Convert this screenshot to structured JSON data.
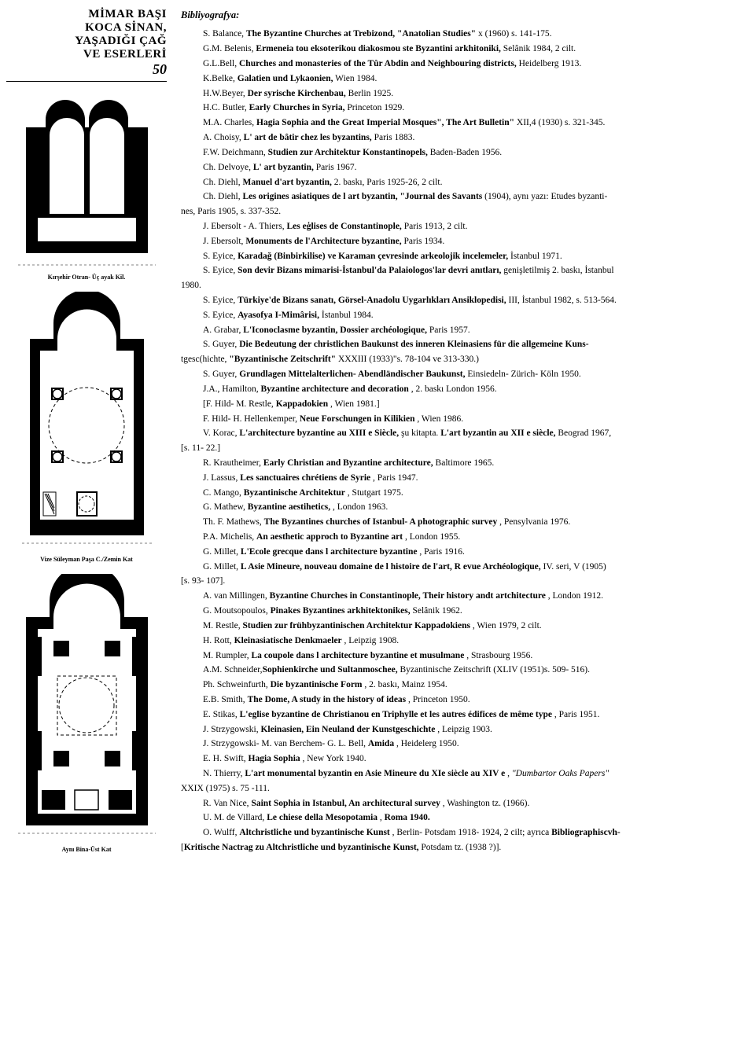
{
  "title": {
    "line1": "MİMAR BAŞI",
    "line2": "KOCA SİNAN,",
    "line3": "YAŞADIĞI ÇAĞ",
    "line4": "VE ESERLERİ",
    "page_number": "50"
  },
  "captions": {
    "fig1": "Kırşehir Otran- Üç ayak Kil.",
    "fig2": "Vize Süleyman Paşa C./Zemin Kat",
    "fig3": "Aynı Bina-Üst Kat"
  },
  "bibliography_title": "Bibliyografya:",
  "entries": [
    "S. Balance, <b>The Byzantine Churches at Trebizond, \"Anatolian Studies\"</b> x (1960) s. 141-175.",
    "G.M. Belenis, <b>Ermeneia tou eksoterikou diakosmou ste Byzantini arkhitoniki,</b> Selânik 1984, 2 cilt.",
    "G.L.Bell, <b>Churches and monasteries of the Tûr Abdin and Neighbouring districts,</b> Heidelberg 1913.",
    "K.Belke, <b>Galatien und Lykaonien,</b> Wien 1984.",
    "H.W.Beyer, <b>Der syrische Kirchenbau,</b> Berlin 1925.",
    "H.C. Butler, <b>Early Churches in Syria,</b> Princeton 1929.",
    "M.A. Charles, <b>Hagia Sophia and the Great Imperial Mosques\", The Art Bulletin\"</b> XII,4 (1930) s. 321-345.",
    "A. Choisy, <b>L' art de bâtir chez les byzantins,</b> Paris 1883.",
    "F.W. Deichmann, <b>Studien zur Architektur Konstantinopels,</b> Baden-Baden 1956.",
    "Ch. Delvoye, <b>L' art byzantin,</b> Paris 1967.",
    "Ch. Diehl, <b>Manuel d'art byzantin,</b> 2. baskı, Paris 1925-26, 2 cilt.",
    "Ch. Diehl, <b>Les origines asiatiques de l art byzantin, \"Journal des Savants</b> (1904), aynı yazı: Etudes byzanti-",
    "__nes, Paris 1905, s. 337-352.",
    "J. Ebersolt - A. Thiers, <b>Les eģlises de Constantinople,</b> Paris 1913, 2 cilt.",
    "J. Ebersolt, <b>Monuments de l'Architecture byzantine,</b> Paris 1934.",
    "S. Eyice, <b>Karadağ (Binbirkilise) ve Karaman çevresinde arkeolojik incelemeler,</b> İstanbul 1971.",
    "S. Eyice, <b>Son devir Bizans mimarisi-İstanbul'da Palaiologos'lar devri anıtları,</b> genişletilmiş 2. baskı, İstanbul",
    "__1980.",
    "S. Eyice, <b>Türkiye'de Bizans sanatı, Görsel-Anadolu Uygarlıkları Ansiklopedisi,</b> III, İstanbul 1982, s. 513-564.",
    "S. Eyice, <b>Ayasofya I-Mimârisi,</b> İstanbul 1984.",
    "A. Grabar, <b>L'Iconoclasme byzantin, Dossier archéologique,</b> Paris 1957.",
    "S. Guyer, <b>Die Bedeutung der christlichen Baukunst des inneren Kleinasiens für die allgemeine Kuns-</b>",
    "__tgesc(hichte, <b>\"Byzantinische Zeitschrift\"</b> XXXIII (1933)\"s. 78-104 ve 313-330.)",
    "S. Guyer, <b>Grundlagen Mittelalterlichen- Abendländischer Baukunst,</b> Einsiedeln- Zürich- Köln 1950.",
    "J.A., Hamilton, <b>Byzantine architecture and decoration</b> , 2. baskı London 1956.",
    "[F. Hild- M. Restle, <b>Kappadokien</b> , Wien 1981.]",
    "F. Hild- H. Hellenkemper, <b>Neue Forschungen in Kilikien</b> , Wien 1986.",
    "V. Korac, <b>L'architecture byzantine au XIII e Siècle,</b> şu kitapta. <b>L'art byzantin au XII e siècle,</b> Beograd 1967,",
    "__[s. 11- 22.]",
    "R. Krautheimer, <b>Early Christian and Byzantine architecture,</b> Baltimore 1965.",
    "J. Lassus, <b>Les sanctuaires chrétiens de Syrie</b> , Paris 1947.",
    "C. Mango, <b>Byzantinische Architektur</b> , Stutgart 1975.",
    "G. Mathew, <b>Byzantine aestihetics,</b> , London 1963.",
    "Th. F. Mathews, <b>The Byzantines churches of Istanbul- A photographic survey</b> , Pensylvania 1976.",
    "P.A. Michelis, <b>An aesthetic approch to Byzantine art</b> , London 1955.",
    "G. Millet, <b>L'Ecole grecque dans l architecture byzantine</b> , Paris 1916.",
    "G. Millet, <b>L Asie Mineure, nouveau domaine de l histoire de l'art, R evue Archéologique,</b> IV. seri, V (1905)",
    "__[s. 93- 107].",
    "A. van Millingen, <b>Byzantine Churches in Constantinople, Their history andt artchitecture</b> , London 1912.",
    "G. Moutsopoulos, <b>Pinakes Byzantines arkhitektonikes,</b> Selânik 1962.",
    "M. Restle, <b>Studien zur frühbyzantinischen Architektur Kappadokiens</b> , Wien 1979, 2 cilt.",
    "H. Rott, <b>Kleinasiatische Denkmaeler</b> , Leipzig 1908.",
    "M. Rumpler, <b>La coupole dans l architecture byzantine et musulmane</b> , Strasbourg 1956.",
    "A.M. Schneider,<b>Sophienkirche und Sultanmoschee,</b> Byzantinische Zeitschrift (XLIV (1951)s. 509- 516).",
    "Ph. Schweinfurth, <b>Die byzantinische Form</b> , 2. baskı, Mainz 1954.",
    "E.B. Smith, <b>The Dome, A study in the history of ideas</b> , Princeton 1950.",
    "E. Stikas, <b>L'eglise byzantine de Christianou en Triphylle et les autres édifices de même type</b> , Paris 1951.",
    "J. Strzygowski, <b>Kleinasien, Ein Neuland der Kunstgeschichte</b> , Leipzig 1903.",
    "J. Strzygowski- M. van Berchem- G. L. Bell, <b>Amida</b> , Heidelerg 1950.",
    "E. H. Swift, <b>Hagia Sophia</b> , New York 1940.",
    "N. Thierry, <b>L'art monumental byzantin en Asie Mineure du XIe siècle au XIV e</b> , <i>\"Dumbartor Oaks Papers\"</i>",
    "__XXIX (1975) s. 75 -111.",
    "R. Van Nice, <b>Saint Sophia in Istanbul, An architectural survey</b> , Washington tz. (1966).",
    "U. M. de Villard, <b>Le chiese della Mesopotamia</b> , <b>Roma 1940.</b>",
    "O. Wulff, <b>Altchristliche und byzantinische Kunst</b> , Berlin- Potsdam 1918- 1924, 2 cilt; ayrıca <b>Bibliographiscvh-</b>",
    "__[<b>Kritische Nactrag zu Altchristliche und byzantinische Kunst,</b> Potsdam tz. (1938 ?)]."
  ]
}
